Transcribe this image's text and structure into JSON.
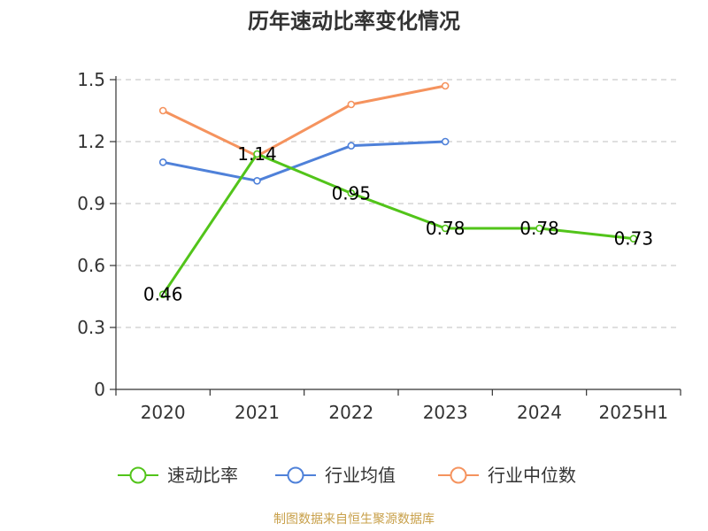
{
  "chart_data": {
    "type": "line",
    "title": "历年速动比率变化情况",
    "categories": [
      "2020",
      "2021",
      "2022",
      "2023",
      "2024",
      "2025H1"
    ],
    "ylim": [
      0,
      1.5
    ],
    "yticks": [
      "0",
      "0.3",
      "0.6",
      "0.9",
      "1.2",
      "1.5"
    ],
    "grid": true,
    "legend_position": "bottom",
    "series": [
      {
        "name": "速动比率",
        "color": "#52c41a",
        "values": [
          0.46,
          1.14,
          0.95,
          0.78,
          0.78,
          0.73
        ],
        "labels": [
          "0.46",
          "1.14",
          "0.95",
          "0.78",
          "0.78",
          "0.73"
        ]
      },
      {
        "name": "行业均值",
        "color": "#4f81d9",
        "values": [
          1.1,
          1.01,
          1.18,
          1.2,
          null,
          null
        ]
      },
      {
        "name": "行业中位数",
        "color": "#f5935e",
        "values": [
          1.35,
          1.13,
          1.38,
          1.47,
          null,
          null
        ]
      }
    ],
    "source": "制图数据来自恒生聚源数据库"
  }
}
